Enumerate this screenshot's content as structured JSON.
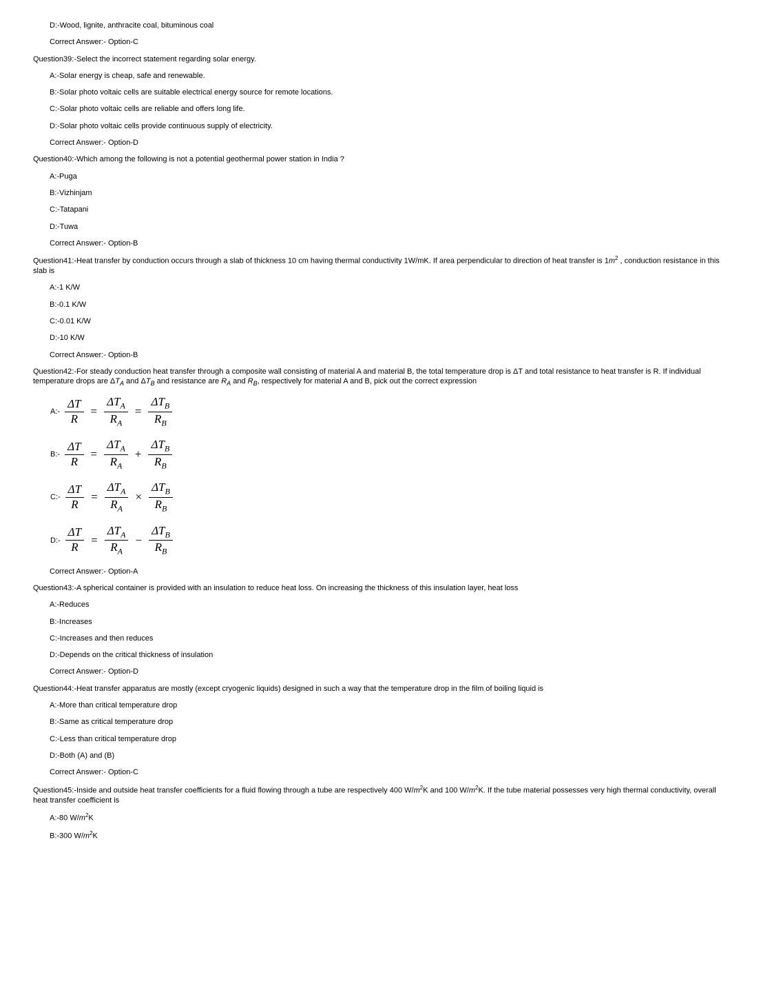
{
  "q38": {
    "D": "D:-Wood, lignite, anthracite coal, bituminous coal",
    "answer": "Correct Answer:- Option-C"
  },
  "q39": {
    "text": "Question39:-Select the incorrect statement regarding solar energy.",
    "A": "A:-Solar energy is cheap, safe and renewable.",
    "B": "B:-Solar photo voltaic cells are suitable electrical energy source for remote locations.",
    "C": "C:-Solar photo voltaic cells are reliable and offers long life.",
    "D": "D:-Solar photo voltaic cells provide continuous supply of electricity.",
    "answer": "Correct Answer:- Option-D"
  },
  "q40": {
    "text": "Question40:-Which among the following is not a potential geothermal power station in India ?",
    "A": "A:-Puga",
    "B": "B:-Vizhinjam",
    "C": "C:-Tatapani",
    "D": "D:-Tuwa",
    "answer": "Correct Answer:- Option-B"
  },
  "q41": {
    "text_pre": "Question41:-Heat transfer by conduction occurs through a slab of thickness 10 cm having thermal conductivity 1W/mK. If area perpendicular to direction of heat transfer is 1",
    "text_unit": "m",
    "text_post": " , conduction resistance in this slab is",
    "A": "A:-1 K/W",
    "B": "B:-0.1 K/W",
    "C": "C:-0.01 K/W",
    "D": "D:-10 K/W",
    "answer": "Correct Answer:- Option-B"
  },
  "q42": {
    "text_a": "Question42:-For steady conduction heat transfer through a composite wall consisting of material A and material B, the total temperature drop is ΔT and total resistance to heat transfer is R. If individual temperature drops are Δ",
    "text_b": " and Δ",
    "text_c": " and resistance are ",
    "text_d": " and ",
    "text_e": ", respectively for material A and B, pick out the correct expression",
    "T": "T",
    "R": "R",
    "labelA": "A:-",
    "labelB": "B:-",
    "labelC": "C:-",
    "labelD": "D:-",
    "frac": {
      "dT": "ΔT",
      "dTA_num": "ΔT",
      "dTB_num": "ΔT",
      "R": "R",
      "RA": "R",
      "RB": "R",
      "subA": "A",
      "subB": "B"
    },
    "ops": {
      "eq": "=",
      "plus": "+",
      "times": "×",
      "minus": "−"
    },
    "answer": "Correct Answer:- Option-A"
  },
  "q43": {
    "text": "Question43:-A spherical container is provided with an insulation to reduce heat loss. On increasing the thickness of this insulation layer, heat loss",
    "A": "A:-Reduces",
    "B": "B:-Increases",
    "C": "C:-Increases and then reduces",
    "D": "D:-Depends on the critical thickness of insulation",
    "answer": "Correct Answer:- Option-D"
  },
  "q44": {
    "text": "Question44:-Heat transfer apparatus are mostly (except cryogenic liquids) designed in such a way that the temperature drop in the film of boiling liquid is",
    "A": "A:-More than critical temperature drop",
    "B": "B:-Same as critical temperature drop",
    "C": "C:-Less than critical temperature drop",
    "D": "D:-Both (A) and (B)",
    "answer": "Correct Answer:- Option-C"
  },
  "q45": {
    "text_a": "Question45:-Inside and outside heat transfer coefficients for a fluid flowing through a tube are respectively 400 W/",
    "text_b": "K and 100 W/",
    "text_c": "K. If the tube material possesses very high thermal conductivity, overall heat transfer coefficient is",
    "unit_m": "m",
    "A_pre": "A:-80 W/",
    "A_post": "K",
    "B_pre": "B:-300 W/",
    "B_post": "K"
  }
}
